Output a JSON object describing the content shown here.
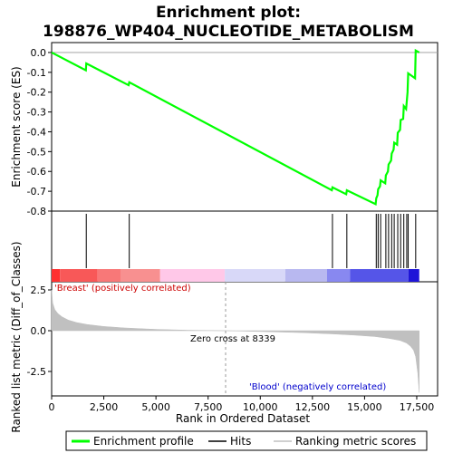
{
  "title_line1": "Enrichment plot:",
  "title_line2": "198876_WP404_NUCLEOTIDE_METABOLISM",
  "chart_data": {
    "type": "line",
    "top_panel": {
      "ylabel": "Enrichment score (ES)",
      "ylim": [
        -0.8,
        0.05
      ],
      "yticks": [
        0.0,
        -0.1,
        -0.2,
        -0.3,
        -0.4,
        -0.5,
        -0.6,
        -0.7,
        -0.8
      ],
      "ytick_labels": [
        "0.0",
        "-0.1",
        "-0.2",
        "-0.3",
        "-0.4",
        "-0.5",
        "-0.6",
        "-0.7",
        "-0.8"
      ],
      "series": [
        {
          "name": "Enrichment profile",
          "color": "#00ff00",
          "x": [
            0,
            1640,
            1660,
            3690,
            3720,
            13430,
            13460,
            14120,
            14150,
            15530,
            15560,
            15620,
            15650,
            15740,
            15770,
            15990,
            16020,
            16120,
            16150,
            16270,
            16300,
            16390,
            16420,
            16560,
            16590,
            16700,
            16730,
            16850,
            16880,
            16990,
            17020,
            17060,
            17090,
            17420,
            17450,
            17620
          ],
          "y": [
            0.0,
            -0.09,
            -0.055,
            -0.165,
            -0.15,
            -0.695,
            -0.68,
            -0.715,
            -0.695,
            -0.765,
            -0.735,
            -0.72,
            -0.69,
            -0.675,
            -0.645,
            -0.66,
            -0.62,
            -0.6,
            -0.565,
            -0.545,
            -0.51,
            -0.49,
            -0.455,
            -0.465,
            -0.405,
            -0.39,
            -0.34,
            -0.335,
            -0.27,
            -0.285,
            -0.25,
            -0.2,
            -0.105,
            -0.13,
            0.01,
            0.0
          ]
        }
      ]
    },
    "hits": [
      1660,
      3720,
      13460,
      14150,
      15560,
      15650,
      15770,
      16020,
      16150,
      16300,
      16420,
      16590,
      16730,
      16880,
      17020,
      17090,
      17450
    ],
    "bottom_panel": {
      "ylabel": "Ranked list metric (Diff_of_Classes)",
      "ylim": [
        -4.0,
        3.0
      ],
      "yticks": [
        2.5,
        0.0,
        -2.5
      ],
      "ytick_labels": [
        "2.5",
        "0.0",
        "-2.5"
      ],
      "series": [
        {
          "name": "Ranking metric scores",
          "color": "#c0c0c0",
          "x": [
            0,
            50,
            150,
            300,
            500,
            800,
            1200,
            1700,
            2500,
            3500,
            5000,
            6500,
            8339,
            10000,
            12000,
            13500,
            14500,
            15500,
            16200,
            16700,
            17000,
            17200,
            17350,
            17450,
            17550,
            17620
          ],
          "y": [
            2.5,
            1.7,
            1.3,
            1.05,
            0.85,
            0.65,
            0.5,
            0.38,
            0.26,
            0.17,
            0.08,
            0.03,
            0.0,
            -0.05,
            -0.12,
            -0.2,
            -0.27,
            -0.36,
            -0.48,
            -0.6,
            -0.75,
            -0.95,
            -1.2,
            -1.6,
            -2.6,
            -3.8
          ]
        }
      ],
      "annotations": {
        "positive": "'Breast' (positively correlated)",
        "zero_cross": "Zero cross at 8339",
        "negative": "'Blood' (negatively correlated)"
      },
      "zero_cross": 8339
    },
    "color_bar": [
      {
        "from": 0,
        "to": 400,
        "color": "#ff3030"
      },
      {
        "from": 400,
        "to": 2200,
        "color": "#f85858"
      },
      {
        "from": 2200,
        "to": 3300,
        "color": "#f87878"
      },
      {
        "from": 3300,
        "to": 5200,
        "color": "#f89090"
      },
      {
        "from": 5200,
        "to": 8300,
        "color": "#ffc8e8"
      },
      {
        "from": 8300,
        "to": 11200,
        "color": "#d8d8f8"
      },
      {
        "from": 11200,
        "to": 13200,
        "color": "#b8b8f0"
      },
      {
        "from": 13200,
        "to": 14300,
        "color": "#8888f0"
      },
      {
        "from": 14300,
        "to": 17100,
        "color": "#5555e8"
      },
      {
        "from": 17100,
        "to": 17620,
        "color": "#1e14d8"
      }
    ],
    "xlabel": "Rank in Ordered Dataset",
    "xlim": [
      0,
      18500
    ],
    "xticks": [
      0,
      2500,
      5000,
      7500,
      10000,
      12500,
      15000,
      17500
    ],
    "xtick_labels": [
      "0",
      "2,500",
      "5,000",
      "7,500",
      "10,000",
      "12,500",
      "15,000",
      "17,500"
    ],
    "legend": [
      "Enrichment profile",
      "Hits",
      "Ranking metric scores"
    ],
    "legend_position": "bottom"
  }
}
